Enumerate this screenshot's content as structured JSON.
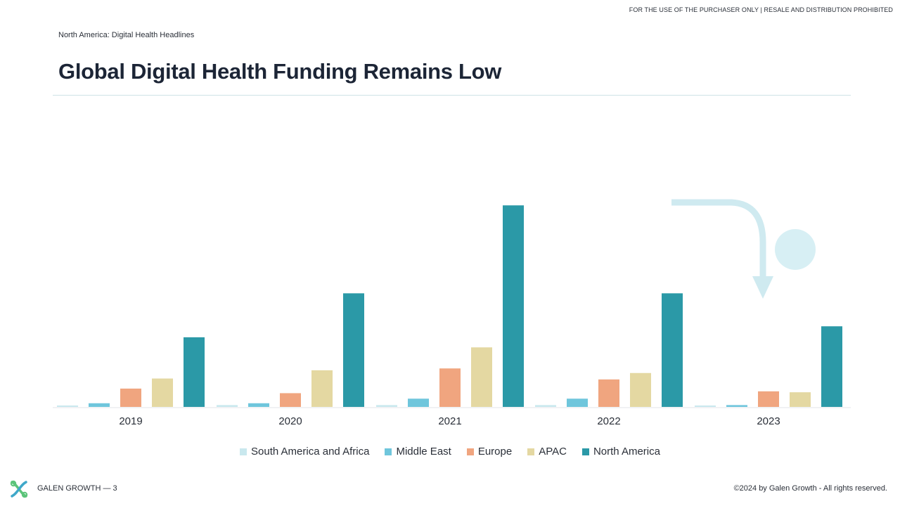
{
  "header": {
    "disclaimer": "FOR THE USE OF THE PURCHASER ONLY | RESALE AND DISTRIBUTION PROHIBITED",
    "breadcrumb": "North America: Digital Health Headlines",
    "title": "Global Digital Health Funding Remains Low"
  },
  "body_text": "",
  "chart_data": {
    "type": "bar",
    "categories": [
      "2019",
      "2020",
      "2021",
      "2022",
      "2023"
    ],
    "series": [
      {
        "name": "South America and Africa",
        "color": "#c9e8ee",
        "values": [
          0.1,
          0.2,
          0.2,
          0.2,
          0.1
        ]
      },
      {
        "name": "Middle East",
        "color": "#6fc6dc",
        "values": [
          0.4,
          0.4,
          0.9,
          0.9,
          0.2
        ]
      },
      {
        "name": "Europe",
        "color": "#f0a57f",
        "values": [
          2.0,
          1.5,
          4.2,
          3.0,
          1.7
        ]
      },
      {
        "name": "APAC",
        "color": "#e4d8a2",
        "values": [
          3.1,
          4.0,
          6.5,
          3.7,
          1.6
        ]
      },
      {
        "name": "North America",
        "color": "#2b99a7",
        "values": [
          7.6,
          12.4,
          22.0,
          12.4,
          8.8
        ]
      }
    ],
    "ylim": [
      0,
      22.4
    ],
    "annotations": [],
    "legend_position": "bottom"
  },
  "footer": {
    "brand": "GALEN GROWTH  —  3",
    "copyright": "©2024 by Galen Growth  - All rights reserved."
  }
}
